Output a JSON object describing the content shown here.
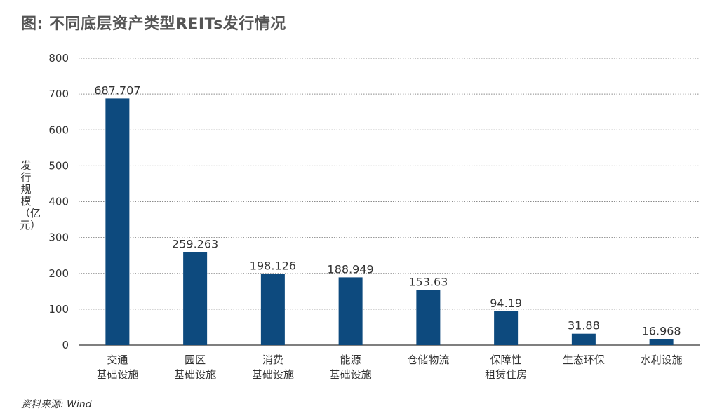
{
  "title": "图: 不同底层资产类型REITs发行情况",
  "source": "资料来源: Wind",
  "chart_data": {
    "type": "bar",
    "title": "图: 不同底层资产类型REITs发行情况",
    "ylabel": "发行规模（亿元）",
    "xlabel": "",
    "ylim": [
      0,
      800
    ],
    "yticks": [
      0,
      100,
      200,
      300,
      400,
      500,
      600,
      700,
      800
    ],
    "grid": true,
    "categories": [
      [
        "交通",
        "基础设施"
      ],
      [
        "园区",
        "基础设施"
      ],
      [
        "消费",
        "基础设施"
      ],
      [
        "能源",
        "基础设施"
      ],
      [
        "仓储物流"
      ],
      [
        "保障性",
        "租赁住房"
      ],
      [
        "生态环保"
      ],
      [
        "水利设施"
      ]
    ],
    "values": [
      687.707,
      259.263,
      198.126,
      188.949,
      153.63,
      94.19,
      31.88,
      16.968
    ],
    "data_labels": [
      "687.707",
      "259.263",
      "198.126",
      "188.949",
      "153.63",
      "94.19",
      "31.88",
      "16.968"
    ],
    "colors": {
      "bar": "#0d4a7e",
      "grid": "#8c8c8c",
      "axis": "#333333"
    }
  }
}
